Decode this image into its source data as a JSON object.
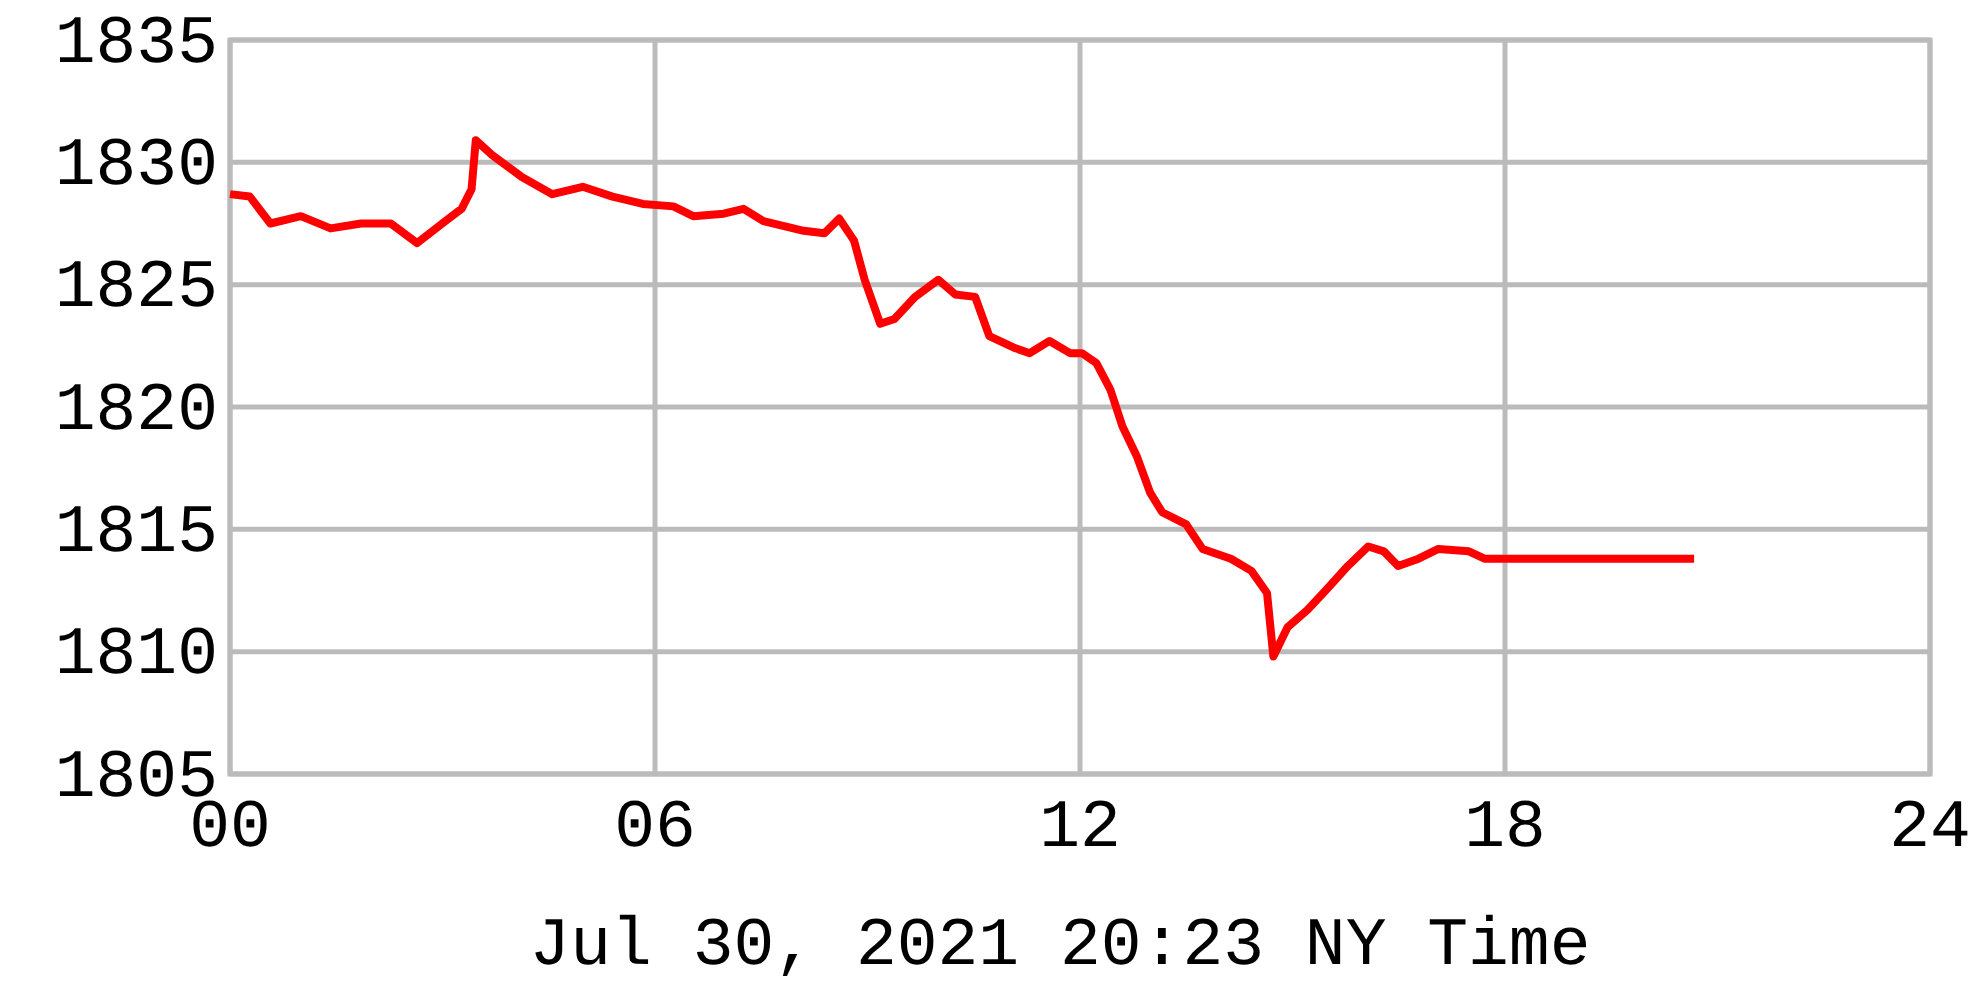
{
  "chart_data": {
    "type": "line",
    "xlabel": "Jul 30, 2021 20:23 NY Time",
    "x": [
      0,
      0.28,
      0.57,
      1.0,
      1.42,
      1.85,
      2.27,
      2.64,
      3.04,
      3.27,
      3.41,
      3.47,
      3.7,
      4.12,
      4.55,
      4.98,
      5.4,
      5.83,
      6.26,
      6.54,
      6.97,
      7.25,
      7.53,
      8.1,
      8.39,
      8.6,
      8.81,
      8.96,
      9.18,
      9.38,
      9.67,
      10.0,
      10.24,
      10.52,
      10.72,
      11.09,
      11.29,
      11.57,
      11.86,
      12.03,
      12.23,
      12.43,
      12.6,
      12.8,
      12.99,
      13.16,
      13.5,
      13.73,
      14.13,
      14.42,
      14.64,
      14.73,
      14.93,
      15.21,
      15.5,
      15.78,
      16.07,
      16.29,
      16.49,
      16.78,
      17.06,
      17.49,
      17.71,
      19.48,
      20.67
    ],
    "series": [
      {
        "color": "#ff0000",
        "values": [
          1828.7,
          1828.6,
          1827.5,
          1827.8,
          1827.3,
          1827.5,
          1827.5,
          1826.7,
          1827.6,
          1828.1,
          1828.9,
          1830.9,
          1830.3,
          1829.4,
          1828.7,
          1829.0,
          1828.6,
          1828.3,
          1828.2,
          1827.8,
          1827.9,
          1828.1,
          1827.6,
          1827.2,
          1827.1,
          1827.7,
          1826.8,
          1825.2,
          1823.4,
          1823.6,
          1824.5,
          1825.2,
          1824.6,
          1824.5,
          1822.9,
          1822.4,
          1822.2,
          1822.7,
          1822.2,
          1822.2,
          1821.8,
          1820.7,
          1819.2,
          1818.0,
          1816.5,
          1815.7,
          1815.2,
          1814.2,
          1813.8,
          1813.3,
          1812.4,
          1809.8,
          1811.0,
          1811.7,
          1812.6,
          1813.5,
          1814.3,
          1814.1,
          1813.5,
          1813.8,
          1814.2,
          1814.1,
          1813.8,
          1813.8,
          1813.8
        ]
      }
    ],
    "xlim": [
      0,
      24
    ],
    "xticks": [
      {
        "value": 0,
        "label": "00"
      },
      {
        "value": 6,
        "label": "06"
      },
      12,
      18,
      24
    ],
    "ylim": [
      1805,
      1835
    ],
    "yticks": [
      1805,
      1810,
      1815,
      1820,
      1825,
      1830,
      1835
    ],
    "grid": true,
    "line_style": "solid"
  }
}
